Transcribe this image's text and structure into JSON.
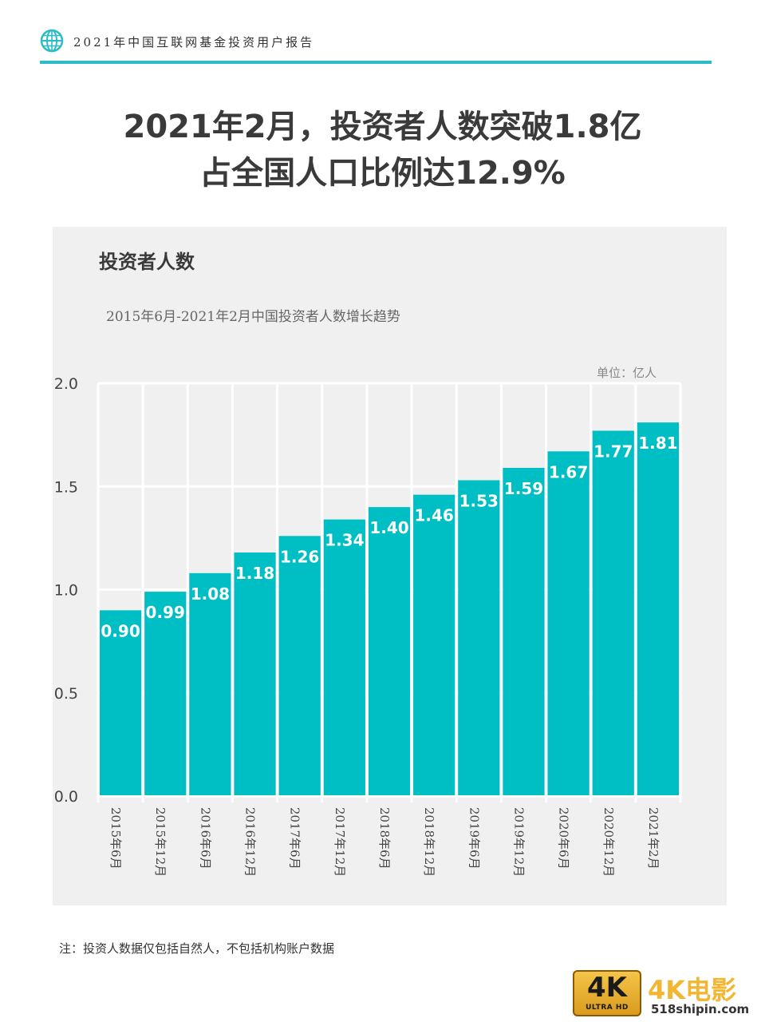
{
  "header": {
    "report_title": "2021年中国互联网基金投资用户报告",
    "accent_color": "#2bbcc6",
    "icon": "globe-icon"
  },
  "headline": {
    "line1": "2021年2月，投资者人数突破1.8亿",
    "line2": "占全国人口比例达12.9%"
  },
  "panel": {
    "heading": "投资者人数",
    "subtitle": "2015年6月-2021年2月中国投资者人数增长趋势",
    "unit": "单位：亿人"
  },
  "chart_data": {
    "type": "bar",
    "title": "投资者人数",
    "subtitle": "2015年6月-2021年2月中国投资者人数增长趋势",
    "unit": "单位：亿人",
    "categories": [
      "2015年6月",
      "2015年12月",
      "2016年6月",
      "2016年12月",
      "2017年6月",
      "2017年12月",
      "2018年6月",
      "2018年12月",
      "2019年6月",
      "2019年12月",
      "2020年6月",
      "2020年12月",
      "2021年2月"
    ],
    "values": [
      0.9,
      0.99,
      1.08,
      1.18,
      1.26,
      1.34,
      1.4,
      1.46,
      1.53,
      1.59,
      1.67,
      1.77,
      1.81
    ],
    "value_labels": [
      "0.90",
      "0.99",
      "1.08",
      "1.18",
      "1.26",
      "1.34",
      "1.40",
      "1.46",
      "1.53",
      "1.59",
      "1.67",
      "1.77",
      "1.81"
    ],
    "y_ticks": [
      "0.0",
      "0.5",
      "1.0",
      "1.5",
      "2.0"
    ],
    "ylim": [
      0,
      2.0
    ],
    "grid": true,
    "bar_color": "#00bfc4",
    "label_color": "#ffffff"
  },
  "footnote": "注：投资人数据仅包括自然人，不包括机构账户数据",
  "watermark": {
    "badge_main": "4K",
    "badge_sub": "ULTRA HD",
    "title": "4K电影",
    "url": "518shipin.com"
  }
}
